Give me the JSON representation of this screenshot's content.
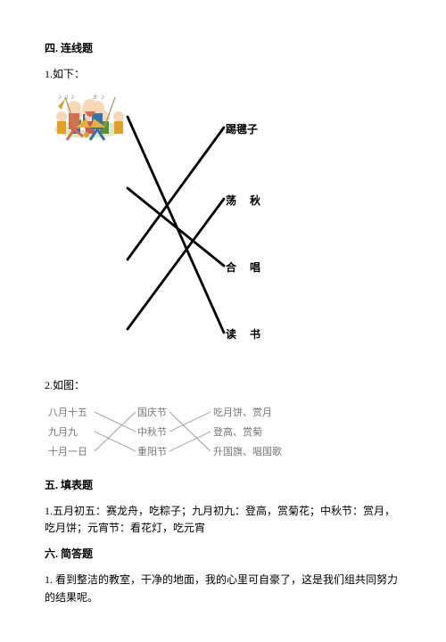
{
  "section4": {
    "title": "四. 连线题",
    "q1_prefix": "1.如下：",
    "q1": {
      "left_colors": {
        "p1": {
          "bg": "#e9f3d8",
          "accent": "#5a8f3a"
        },
        "p2": {
          "bg": "#fff4d8",
          "accent": "#e0a030"
        },
        "p3": {
          "bg": "#fde8e0",
          "accent": "#d86a50"
        },
        "p4": {
          "bg": "#fff",
          "accent": "#d2a040"
        }
      },
      "right_labels": [
        "踢毽子",
        "荡　  秋",
        "合　  唱",
        "读　  书"
      ],
      "lines": [
        {
          "from": 0,
          "to": 3
        },
        {
          "from": 1,
          "to": 2
        },
        {
          "from": 2,
          "to": 0
        },
        {
          "from": 3,
          "to": 1
        }
      ],
      "stroke": "#000000",
      "stroke_width": 2.8
    },
    "q2_prefix": "2.如图：",
    "q2": {
      "col_left": [
        "八月十五",
        "九月九",
        "十月一日"
      ],
      "col_mid": [
        "国庆节",
        "中秋节",
        "重阳节"
      ],
      "col_right": [
        "吃月饼、赏月",
        "登高、赏菊",
        "升国旗、唱国歌"
      ],
      "lines_lm": [
        {
          "from": 0,
          "to": 1
        },
        {
          "from": 1,
          "to": 2
        },
        {
          "from": 2,
          "to": 0
        }
      ],
      "lines_mr": [
        {
          "from": 0,
          "to": 2
        },
        {
          "from": 1,
          "to": 0
        },
        {
          "from": 2,
          "to": 1
        }
      ],
      "stroke": "#999999",
      "stroke_width": 0.9,
      "text_color": "#7a7a7a"
    }
  },
  "section5": {
    "title": "五. 填表题",
    "body": "1.五月初五：赛龙舟，吃粽子；九月初九：登高，赏菊花；中秋节：赏月，吃月饼；元宵节：看花灯，吃元宵"
  },
  "section6": {
    "title": "六. 简答题",
    "body": "1. 看到整洁的教室，干净的地面，我的心里可自豪了，这是我们组共同努力的结果呢。"
  }
}
